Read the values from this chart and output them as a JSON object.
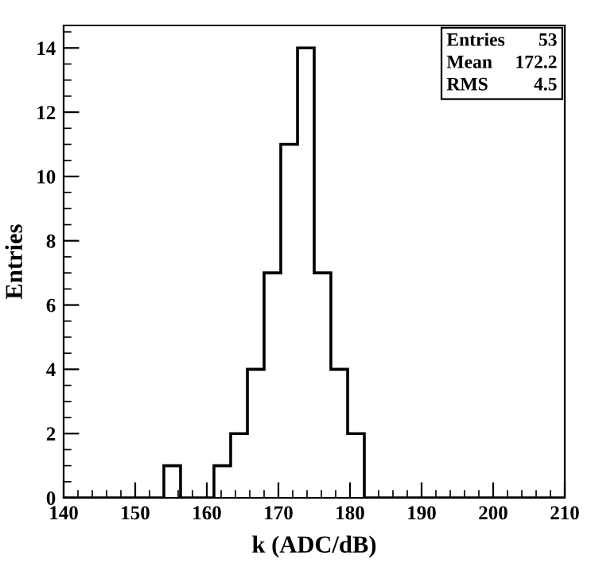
{
  "chart_data": {
    "type": "histogram",
    "xlabel": "k (ADC/dB)",
    "ylabel": "Entries",
    "bins": [
      140,
      142.33,
      144.67,
      147,
      149.33,
      151.67,
      154,
      156.33,
      158.67,
      161,
      163.33,
      165.67,
      168,
      170.33,
      172.67,
      175,
      177.33,
      179.67,
      182,
      184.33,
      186.67,
      189,
      191.33,
      193.67,
      196,
      198.33,
      200.67,
      203,
      205.33,
      207.67,
      210
    ],
    "values": [
      0,
      0,
      0,
      0,
      0,
      0,
      1,
      0,
      0,
      1,
      2,
      4,
      7,
      11,
      14,
      7,
      4,
      2,
      0,
      0,
      0,
      0,
      0,
      0,
      0,
      0,
      0,
      0,
      0,
      0
    ],
    "color": "#000000",
    "xlim": [
      140,
      210
    ],
    "xticks": [
      140,
      150,
      160,
      170,
      180,
      190,
      200,
      210
    ],
    "ylim": [
      0,
      14.7
    ],
    "yticks": [
      0,
      2,
      4,
      6,
      8,
      10,
      12,
      14
    ],
    "grid": false,
    "legend": false,
    "annotations": [
      "Entries",
      "53",
      "Mean",
      "172.2",
      "RMS",
      "4.5"
    ]
  }
}
